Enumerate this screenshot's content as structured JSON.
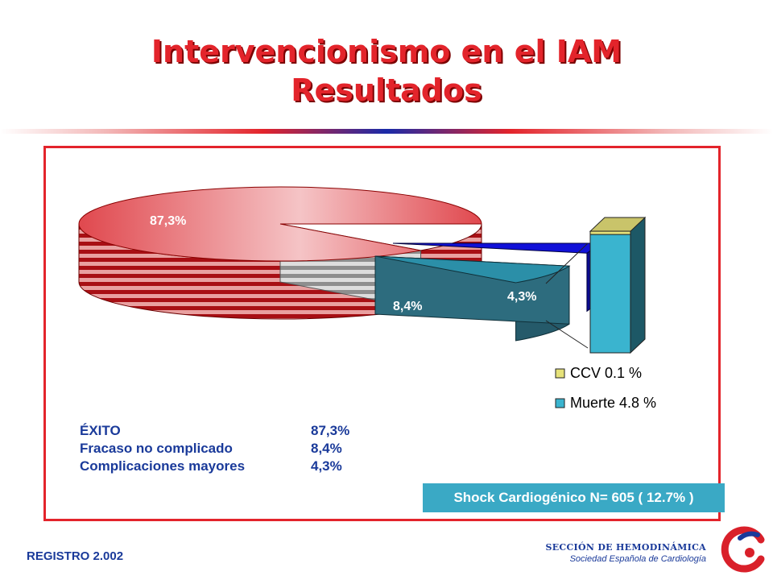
{
  "slide": {
    "title_line1": "Intervencionismo en el IAM",
    "title_line2": "Resultados",
    "footer_left": "REGISTRO 2.002",
    "footer_section": "SECCIÓN DE HEMODINÁMICA",
    "footer_society": "Sociedad Española de Cardiología"
  },
  "summary": [
    {
      "label": "ÉXITO",
      "value": "87,3%"
    },
    {
      "label": "Fracaso no complicado",
      "value": "8,4%"
    },
    {
      "label": "Complicaciones mayores",
      "value": "4,3%"
    }
  ],
  "shock_label": "Shock Cardiogénico N= 605 ( 12.7% )",
  "chart_data": [
    {
      "type": "pie",
      "categories": [
        "ÉXITO",
        "Fracaso no complicado",
        "Complicaciones mayores"
      ],
      "values": [
        87.3,
        8.4,
        4.3
      ],
      "data_labels": [
        "87,3%",
        "8,4%",
        "4,3%"
      ],
      "colors": [
        "#d9202a",
        "#2b8fa8",
        "#1010d8"
      ]
    },
    {
      "type": "bar",
      "stacked": true,
      "series": [
        {
          "name": "CCV  0.1 %",
          "value": 0.1,
          "color": "#e6e27a"
        },
        {
          "name": "Muerte 4.8 %",
          "value": 4.8,
          "color": "#3ab4cf"
        }
      ],
      "legend_position": "bottom"
    }
  ]
}
